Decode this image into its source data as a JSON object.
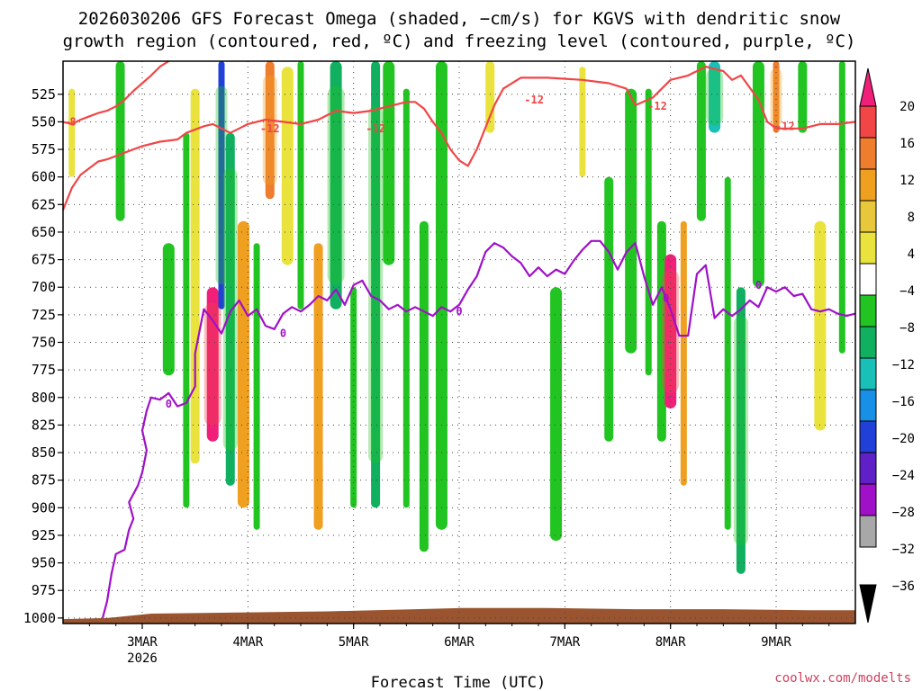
{
  "title_line1": "2026030206 GFS Forecast Omega (shaded, −cm/s) for KGVS with dendritic snow",
  "title_line2": "growth region (contoured, red, ºC) and freezing level (contoured, purple, ºC)",
  "credit": "coolwx.com/modelts",
  "chart_data": {
    "type": "time-height contour",
    "xlabel": "Forecast Time (UTC)",
    "ylabel": "Pressure (hPa)",
    "x_ticks": [
      {
        "label": "3MAR",
        "sublabel": "2026",
        "hours": 18
      },
      {
        "label": "4MAR",
        "sublabel": "",
        "hours": 42
      },
      {
        "label": "5MAR",
        "sublabel": "",
        "hours": 66
      },
      {
        "label": "6MAR",
        "sublabel": "",
        "hours": 90
      },
      {
        "label": "7MAR",
        "sublabel": "",
        "hours": 114
      },
      {
        "label": "8MAR",
        "sublabel": "",
        "hours": 138
      },
      {
        "label": "9MAR",
        "sublabel": "",
        "hours": 162
      }
    ],
    "x_range_hours": [
      0,
      180
    ],
    "y_ticks": [
      525,
      550,
      575,
      600,
      625,
      650,
      675,
      700,
      725,
      750,
      775,
      800,
      825,
      850,
      875,
      900,
      925,
      950,
      975,
      1000
    ],
    "y_range": [
      495,
      1005
    ],
    "colorbar": {
      "labels": [
        "20",
        "16",
        "12",
        "8",
        "4",
        "−4",
        "−8",
        "−12",
        "−16",
        "−20",
        "−24",
        "−28",
        "−32",
        "−36"
      ],
      "colors": [
        "#f0207a",
        "#f24545",
        "#ee7d2e",
        "#f0a020",
        "#e8c83a",
        "#ebe33d",
        "#ffffff",
        "#22c422",
        "#10b060",
        "#18c0b8",
        "#1890e8",
        "#2040d8",
        "#6020c8",
        "#a010c8",
        "#a8a8a8"
      ]
    },
    "omega_bands": [
      {
        "x": 2,
        "top": 520,
        "bottom": 600,
        "value": 4
      },
      {
        "x": 13,
        "top": 495,
        "bottom": 640,
        "value": -8
      },
      {
        "x": 24,
        "top": 660,
        "bottom": 780,
        "value": -8
      },
      {
        "x": 28,
        "top": 560,
        "bottom": 900,
        "value": -8
      },
      {
        "x": 30,
        "top": 520,
        "bottom": 860,
        "value": 4
      },
      {
        "x": 34,
        "top": 700,
        "bottom": 840,
        "value": 20
      },
      {
        "x": 36,
        "top": 495,
        "bottom": 720,
        "value": -24
      },
      {
        "x": 38,
        "top": 560,
        "bottom": 880,
        "value": -12
      },
      {
        "x": 41,
        "top": 640,
        "bottom": 900,
        "value": 8
      },
      {
        "x": 44,
        "top": 660,
        "bottom": 920,
        "value": -8
      },
      {
        "x": 47,
        "top": 495,
        "bottom": 620,
        "value": 12
      },
      {
        "x": 51,
        "top": 500,
        "bottom": 680,
        "value": 4
      },
      {
        "x": 54,
        "top": 495,
        "bottom": 720,
        "value": -8
      },
      {
        "x": 58,
        "top": 660,
        "bottom": 920,
        "value": 8
      },
      {
        "x": 62,
        "top": 495,
        "bottom": 720,
        "value": -12
      },
      {
        "x": 66,
        "top": 700,
        "bottom": 900,
        "value": -8
      },
      {
        "x": 71,
        "top": 495,
        "bottom": 900,
        "value": -12
      },
      {
        "x": 74,
        "top": 495,
        "bottom": 680,
        "value": -8
      },
      {
        "x": 78,
        "top": 520,
        "bottom": 900,
        "value": -8
      },
      {
        "x": 82,
        "top": 640,
        "bottom": 940,
        "value": -8
      },
      {
        "x": 86,
        "top": 495,
        "bottom": 920,
        "value": -8
      },
      {
        "x": 92,
        "top": 560,
        "bottom": 680,
        "value": -4
      },
      {
        "x": 97,
        "top": 495,
        "bottom": 560,
        "value": 4
      },
      {
        "x": 112,
        "top": 700,
        "bottom": 930,
        "value": -8
      },
      {
        "x": 118,
        "top": 500,
        "bottom": 600,
        "value": 4
      },
      {
        "x": 124,
        "top": 600,
        "bottom": 840,
        "value": -8
      },
      {
        "x": 129,
        "top": 520,
        "bottom": 760,
        "value": -8
      },
      {
        "x": 133,
        "top": 520,
        "bottom": 780,
        "value": -8
      },
      {
        "x": 136,
        "top": 640,
        "bottom": 840,
        "value": -8
      },
      {
        "x": 138,
        "top": 670,
        "bottom": 810,
        "value": 20
      },
      {
        "x": 141,
        "top": 640,
        "bottom": 880,
        "value": 8
      },
      {
        "x": 145,
        "top": 495,
        "bottom": 640,
        "value": -8
      },
      {
        "x": 148,
        "top": 495,
        "bottom": 560,
        "value": -16
      },
      {
        "x": 151,
        "top": 600,
        "bottom": 920,
        "value": -8
      },
      {
        "x": 154,
        "top": 700,
        "bottom": 960,
        "value": -12
      },
      {
        "x": 158,
        "top": 495,
        "bottom": 700,
        "value": -8
      },
      {
        "x": 162,
        "top": 495,
        "bottom": 560,
        "value": 12
      },
      {
        "x": 168,
        "top": 495,
        "bottom": 560,
        "value": -8
      },
      {
        "x": 172,
        "top": 640,
        "bottom": 830,
        "value": 4
      },
      {
        "x": 177,
        "top": 495,
        "bottom": 760,
        "value": -8
      }
    ],
    "series": [
      {
        "name": "-8C dendritic lower",
        "color": "#f24545",
        "points": [
          [
            0,
            630
          ],
          [
            2,
            610
          ],
          [
            4,
            598
          ],
          [
            6,
            592
          ],
          [
            8,
            586
          ],
          [
            10,
            584
          ],
          [
            14,
            578
          ],
          [
            18,
            572
          ],
          [
            22,
            568
          ],
          [
            26,
            566
          ],
          [
            28,
            560
          ],
          [
            32,
            554
          ],
          [
            34,
            552
          ],
          [
            36,
            556
          ],
          [
            38,
            560
          ],
          [
            40,
            556
          ],
          [
            42,
            552
          ],
          [
            44,
            550
          ],
          [
            46,
            548
          ],
          [
            50,
            550
          ],
          [
            54,
            552
          ],
          [
            58,
            548
          ],
          [
            62,
            540
          ],
          [
            66,
            542
          ],
          [
            70,
            540
          ],
          [
            74,
            536
          ],
          [
            78,
            532
          ],
          [
            80,
            532
          ],
          [
            82,
            538
          ],
          [
            84,
            550
          ],
          [
            86,
            560
          ],
          [
            88,
            575
          ],
          [
            90,
            585
          ],
          [
            92,
            590
          ],
          [
            94,
            575
          ],
          [
            96,
            555
          ],
          [
            98,
            535
          ],
          [
            100,
            520
          ],
          [
            104,
            510
          ],
          [
            110,
            510
          ],
          [
            118,
            512
          ],
          [
            124,
            515
          ],
          [
            128,
            520
          ],
          [
            130,
            535
          ],
          [
            134,
            528
          ],
          [
            138,
            512
          ],
          [
            142,
            508
          ],
          [
            146,
            500
          ],
          [
            150,
            504
          ],
          [
            152,
            512
          ],
          [
            154,
            508
          ],
          [
            158,
            530
          ],
          [
            160,
            550
          ],
          [
            162,
            556
          ],
          [
            168,
            556
          ],
          [
            172,
            552
          ],
          [
            176,
            552
          ],
          [
            180,
            550
          ]
        ]
      },
      {
        "name": "-12C dendritic upper",
        "color": "#f24545",
        "points": [
          [
            0,
            550
          ],
          [
            2,
            552
          ],
          [
            4,
            548
          ],
          [
            6,
            545
          ],
          [
            8,
            542
          ],
          [
            10,
            540
          ],
          [
            12,
            536
          ],
          [
            14,
            530
          ],
          [
            16,
            522
          ],
          [
            18,
            515
          ],
          [
            20,
            508
          ],
          [
            22,
            500
          ],
          [
            24,
            495
          ]
        ]
      },
      {
        "name": "0C freezing level",
        "color": "#a010c8",
        "points": [
          [
            9,
            1000
          ],
          [
            10,
            985
          ],
          [
            11,
            960
          ],
          [
            12,
            942
          ],
          [
            14,
            938
          ],
          [
            15,
            920
          ],
          [
            16,
            910
          ],
          [
            15,
            895
          ],
          [
            17,
            880
          ],
          [
            18,
            868
          ],
          [
            19,
            848
          ],
          [
            18,
            830
          ],
          [
            19,
            812
          ],
          [
            20,
            800
          ],
          [
            22,
            802
          ],
          [
            24,
            796
          ],
          [
            26,
            808
          ],
          [
            28,
            805
          ],
          [
            30,
            790
          ],
          [
            30,
            760
          ],
          [
            32,
            720
          ],
          [
            34,
            730
          ],
          [
            36,
            742
          ],
          [
            38,
            722
          ],
          [
            40,
            712
          ],
          [
            42,
            726
          ],
          [
            44,
            720
          ],
          [
            46,
            735
          ],
          [
            48,
            738
          ],
          [
            50,
            724
          ],
          [
            52,
            718
          ],
          [
            54,
            722
          ],
          [
            56,
            716
          ],
          [
            58,
            708
          ],
          [
            60,
            712
          ],
          [
            62,
            702
          ],
          [
            64,
            716
          ],
          [
            66,
            698
          ],
          [
            68,
            694
          ],
          [
            70,
            708
          ],
          [
            72,
            712
          ],
          [
            74,
            720
          ],
          [
            76,
            716
          ],
          [
            78,
            722
          ],
          [
            80,
            718
          ],
          [
            82,
            722
          ],
          [
            84,
            726
          ],
          [
            86,
            718
          ],
          [
            88,
            722
          ],
          [
            90,
            716
          ],
          [
            92,
            702
          ],
          [
            94,
            690
          ],
          [
            96,
            668
          ],
          [
            98,
            660
          ],
          [
            100,
            664
          ],
          [
            102,
            672
          ],
          [
            104,
            678
          ],
          [
            106,
            690
          ],
          [
            108,
            682
          ],
          [
            110,
            690
          ],
          [
            112,
            684
          ],
          [
            114,
            688
          ],
          [
            116,
            676
          ],
          [
            118,
            666
          ],
          [
            120,
            658
          ],
          [
            122,
            658
          ],
          [
            124,
            668
          ],
          [
            126,
            684
          ],
          [
            128,
            668
          ],
          [
            130,
            660
          ],
          [
            132,
            690
          ],
          [
            134,
            716
          ],
          [
            136,
            700
          ],
          [
            138,
            720
          ],
          [
            140,
            744
          ],
          [
            142,
            744
          ],
          [
            144,
            688
          ],
          [
            146,
            680
          ],
          [
            148,
            728
          ],
          [
            150,
            720
          ],
          [
            152,
            726
          ],
          [
            154,
            720
          ],
          [
            156,
            712
          ],
          [
            158,
            718
          ],
          [
            160,
            700
          ],
          [
            162,
            704
          ],
          [
            164,
            700
          ],
          [
            166,
            708
          ],
          [
            168,
            706
          ],
          [
            170,
            720
          ],
          [
            172,
            722
          ],
          [
            174,
            720
          ],
          [
            176,
            724
          ],
          [
            178,
            726
          ],
          [
            180,
            724
          ]
        ]
      }
    ],
    "contour_labels": [
      {
        "text": "-8",
        "x": 1.5,
        "p": 550,
        "color": "#f24545"
      },
      {
        "text": "-12",
        "x": 47,
        "p": 556,
        "color": "#f24545"
      },
      {
        "text": "-12",
        "x": 71,
        "p": 556,
        "color": "#f24545"
      },
      {
        "text": "-12",
        "x": 107,
        "p": 530,
        "color": "#f24545"
      },
      {
        "text": "-12",
        "x": 135,
        "p": 536,
        "color": "#f24545"
      },
      {
        "text": "-12",
        "x": 164,
        "p": 554,
        "color": "#f24545"
      },
      {
        "text": "0",
        "x": 24,
        "p": 806,
        "color": "#a010c8"
      },
      {
        "text": "0",
        "x": 50,
        "p": 742,
        "color": "#a010c8"
      },
      {
        "text": "0",
        "x": 90,
        "p": 722,
        "color": "#a010c8"
      },
      {
        "text": "0",
        "x": 137,
        "p": 710,
        "color": "#a010c8"
      },
      {
        "text": "0",
        "x": 158,
        "p": 698,
        "color": "#a010c8"
      }
    ],
    "terrain": {
      "color": "#9a5530",
      "label": "surface",
      "points": [
        [
          0,
          1001
        ],
        [
          10,
          1000
        ],
        [
          20,
          996
        ],
        [
          40,
          995
        ],
        [
          60,
          994
        ],
        [
          80,
          992
        ],
        [
          90,
          991
        ],
        [
          110,
          991
        ],
        [
          130,
          992
        ],
        [
          150,
          992
        ],
        [
          170,
          993
        ],
        [
          180,
          993
        ]
      ]
    }
  }
}
